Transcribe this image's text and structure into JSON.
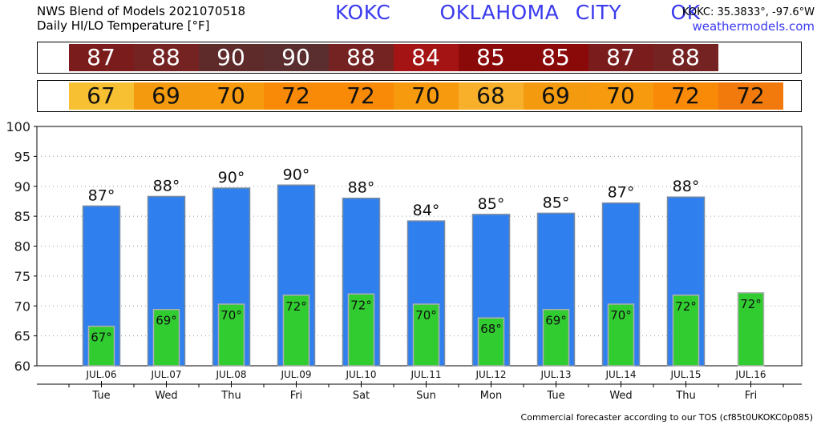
{
  "header": {
    "title_line1": "NWS Blend of Models 2021070518",
    "title_line2": "Daily HI/LO Temperature [°F]",
    "station": "KOKC   OKLAHOMA CITY   OK",
    "coords": "KOKC: 35.3833°, -97.6°W",
    "website": "weathermodels.com"
  },
  "colors": {
    "high_bar": "#2f80ee",
    "low_bar": "#30cc30",
    "station_text": "#3a3af0",
    "hi_strip": [
      "#7a1c1c",
      "#752222",
      "#5f2a2a",
      "#5a2e2e",
      "#752222",
      "#a51414",
      "#8a0a0a",
      "#8a0a0a",
      "#7a1c1c",
      "#752222"
    ],
    "lo_strip": [
      "#f7c033",
      "#f39a0e",
      "#f79a0e",
      "#f88a08",
      "#f88a08",
      "#f79a0e",
      "#f8b02a",
      "#f39a0e",
      "#f79a0e",
      "#f88a08",
      "#f27a0c"
    ]
  },
  "footer": "Commercial forecaster according to our TOS (cf85t0UKOKC0p085)",
  "chart_data": {
    "type": "bar",
    "categories": [
      "JUL.06",
      "JUL.07",
      "JUL.08",
      "JUL.09",
      "JUL.10",
      "JUL.11",
      "JUL.12",
      "JUL.13",
      "JUL.14",
      "JUL.15",
      "JUL.16"
    ],
    "days": [
      "Tue",
      "Wed",
      "Thu",
      "Fri",
      "Sat",
      "Sun",
      "Mon",
      "Tue",
      "Wed",
      "Thu",
      "Fri"
    ],
    "series": [
      {
        "values": [
          86.7,
          88.3,
          89.7,
          90.2,
          88.0,
          84.2,
          85.3,
          85.5,
          87.2,
          88.2,
          null
        ]
      },
      {
        "values": [
          66.6,
          69.4,
          70.3,
          71.8,
          72.0,
          70.3,
          68.0,
          69.4,
          70.3,
          71.8,
          72.2
        ]
      }
    ],
    "hi_labels": [
      "87°",
      "88°",
      "90°",
      "90°",
      "88°",
      "84°",
      "85°",
      "85°",
      "87°",
      "88°",
      ""
    ],
    "lo_labels": [
      "67°",
      "69°",
      "70°",
      "72°",
      "72°",
      "70°",
      "68°",
      "69°",
      "70°",
      "72°",
      "72°"
    ],
    "hi_strip_values": [
      "87",
      "88",
      "90",
      "90",
      "88",
      "84",
      "85",
      "85",
      "87",
      "88"
    ],
    "lo_strip_values": [
      "67",
      "69",
      "70",
      "72",
      "72",
      "70",
      "68",
      "69",
      "70",
      "72",
      "72"
    ],
    "yticks": [
      "100",
      "95",
      "90",
      "85",
      "80",
      "75",
      "70",
      "65",
      "60"
    ],
    "ylim": [
      60,
      100
    ],
    "grid": true
  }
}
